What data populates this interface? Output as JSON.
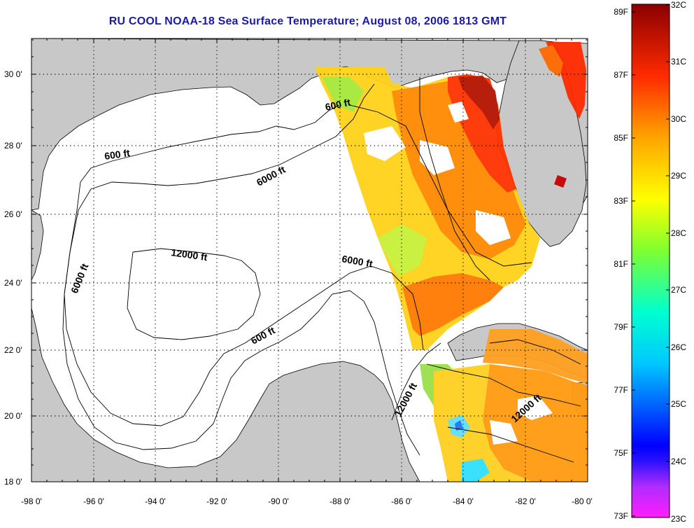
{
  "title": "RU COOL  NOAA-18  Sea Surface Temperature;  August 08, 2006 1813 GMT",
  "map": {
    "lon_ticks": [
      "-98 0'",
      "-96 0'",
      "-94 0'",
      "-92 0'",
      "-90 0'",
      "-88 0'",
      "-86 0'",
      "-84 0'",
      "-82 0'",
      "-80 0'"
    ],
    "lat_ticks": [
      "30 0'",
      "28 0'",
      "26 0'",
      "24 0'",
      "22 0'",
      "20 0'",
      "18 0'"
    ],
    "lon_range": [
      -98,
      -80
    ],
    "lat_range": [
      18,
      31.1
    ],
    "land_color": "#c8c8c8",
    "water_color": "#ffffff",
    "contour_labels": {
      "c600_east": "600 ft",
      "c600_west": "600 ft",
      "c6000_north": "6000 ft",
      "c12000_center": "12000 ft",
      "c6000_center": "6000 ft",
      "c6000_west": "6000 ft",
      "c600_south": "600 ft",
      "c12000_south": "12000 ft",
      "c12000_east": "12000 ft"
    }
  },
  "colorbar": {
    "f_labels": [
      "89F",
      "87F",
      "85F",
      "83F",
      "81F",
      "79F",
      "77F",
      "75F",
      "73F"
    ],
    "c_labels": [
      "32C",
      "31C",
      "30C",
      "29C",
      "28C",
      "27C",
      "26C",
      "25C",
      "24C",
      "23C"
    ],
    "f_range": [
      73,
      89
    ],
    "c_range": [
      23,
      32
    ],
    "colors": [
      "#ff1eff",
      "#0000ff",
      "#00e8ff",
      "#5fff4a",
      "#ffff00",
      "#ffa500",
      "#ff2a00",
      "#8b0000"
    ]
  }
}
